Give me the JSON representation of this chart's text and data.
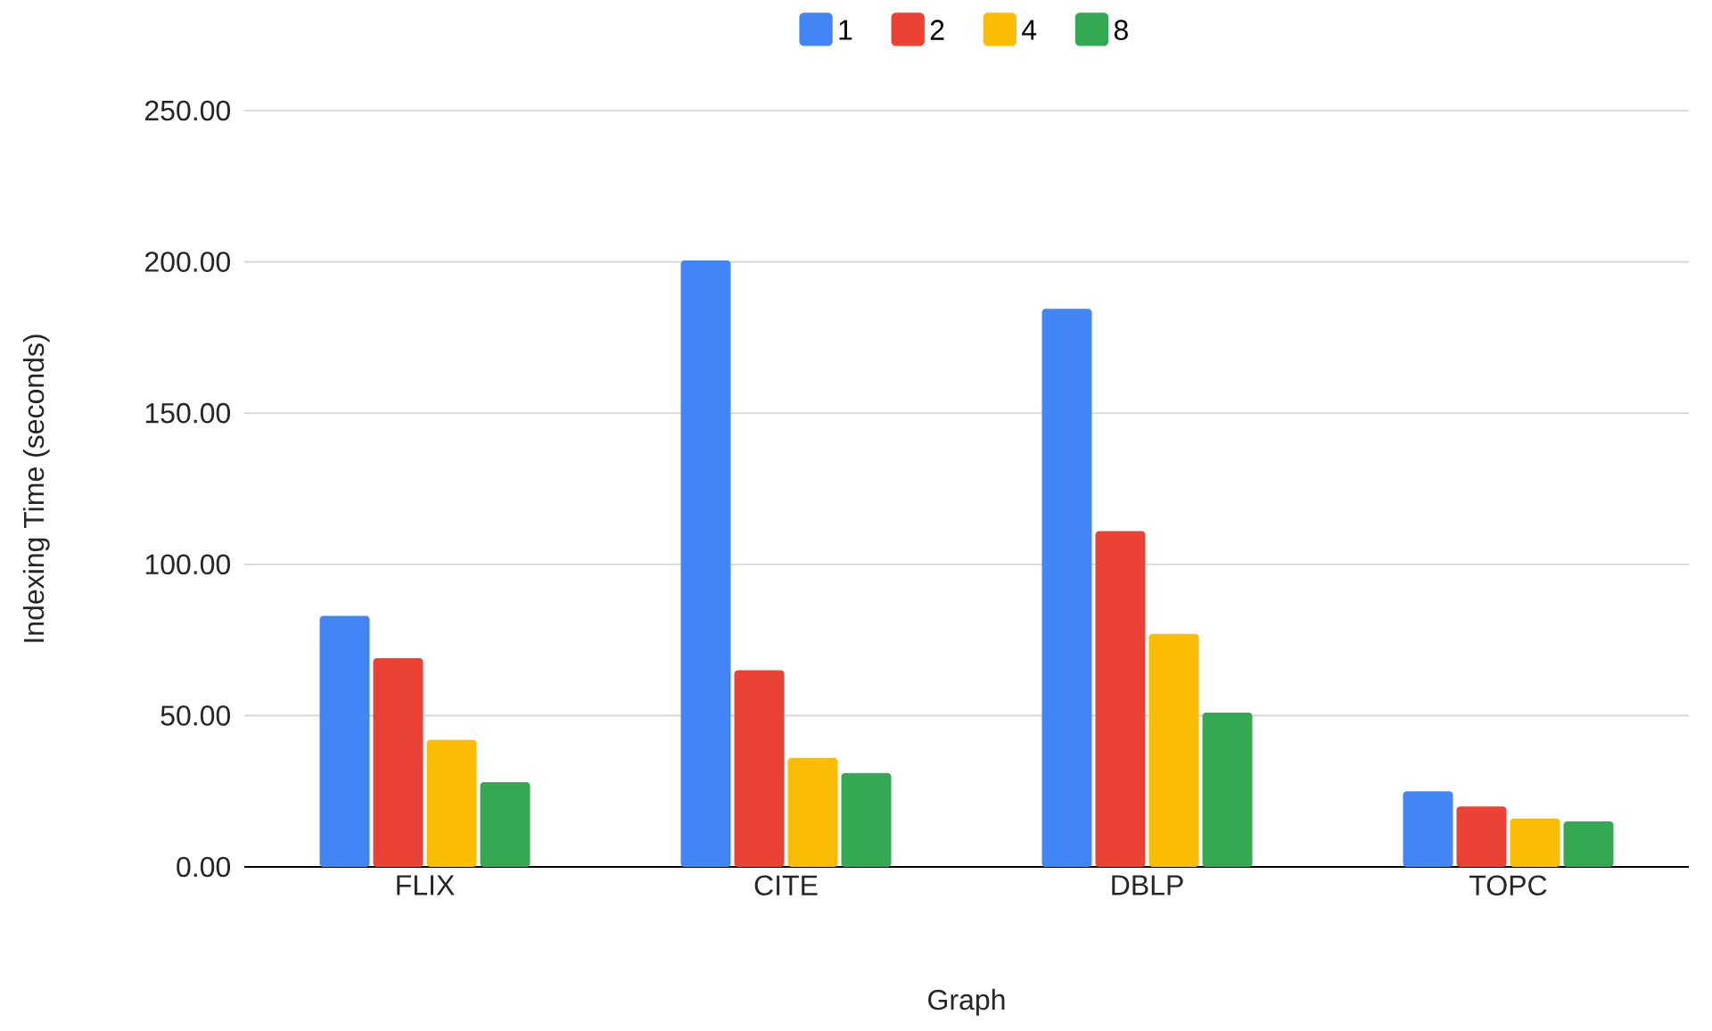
{
  "chart_data": {
    "type": "bar",
    "xlabel": "Graph",
    "ylabel": "Indexing Time (seconds)",
    "categories": [
      "FLIX",
      "CITE",
      "DBLP",
      "TOPC"
    ],
    "series": [
      {
        "name": "1",
        "color": "#4285f4",
        "values": [
          83,
          200.5,
          184.5,
          25
        ]
      },
      {
        "name": "2",
        "color": "#ea4335",
        "values": [
          69,
          65,
          111,
          20
        ]
      },
      {
        "name": "4",
        "color": "#fbbc04",
        "values": [
          42,
          36,
          77,
          16
        ]
      },
      {
        "name": "8",
        "color": "#34a853",
        "values": [
          28,
          31,
          51,
          15
        ]
      }
    ],
    "ylim": [
      0,
      250
    ],
    "yticks": [
      {
        "value": 0,
        "label": "0.00"
      },
      {
        "value": 50,
        "label": "50.00"
      },
      {
        "value": 100,
        "label": "100.00"
      },
      {
        "value": 150,
        "label": "150.00"
      },
      {
        "value": 200,
        "label": "200.00"
      },
      {
        "value": 250,
        "label": "250.00"
      }
    ],
    "grid": "y",
    "legend": "top"
  }
}
